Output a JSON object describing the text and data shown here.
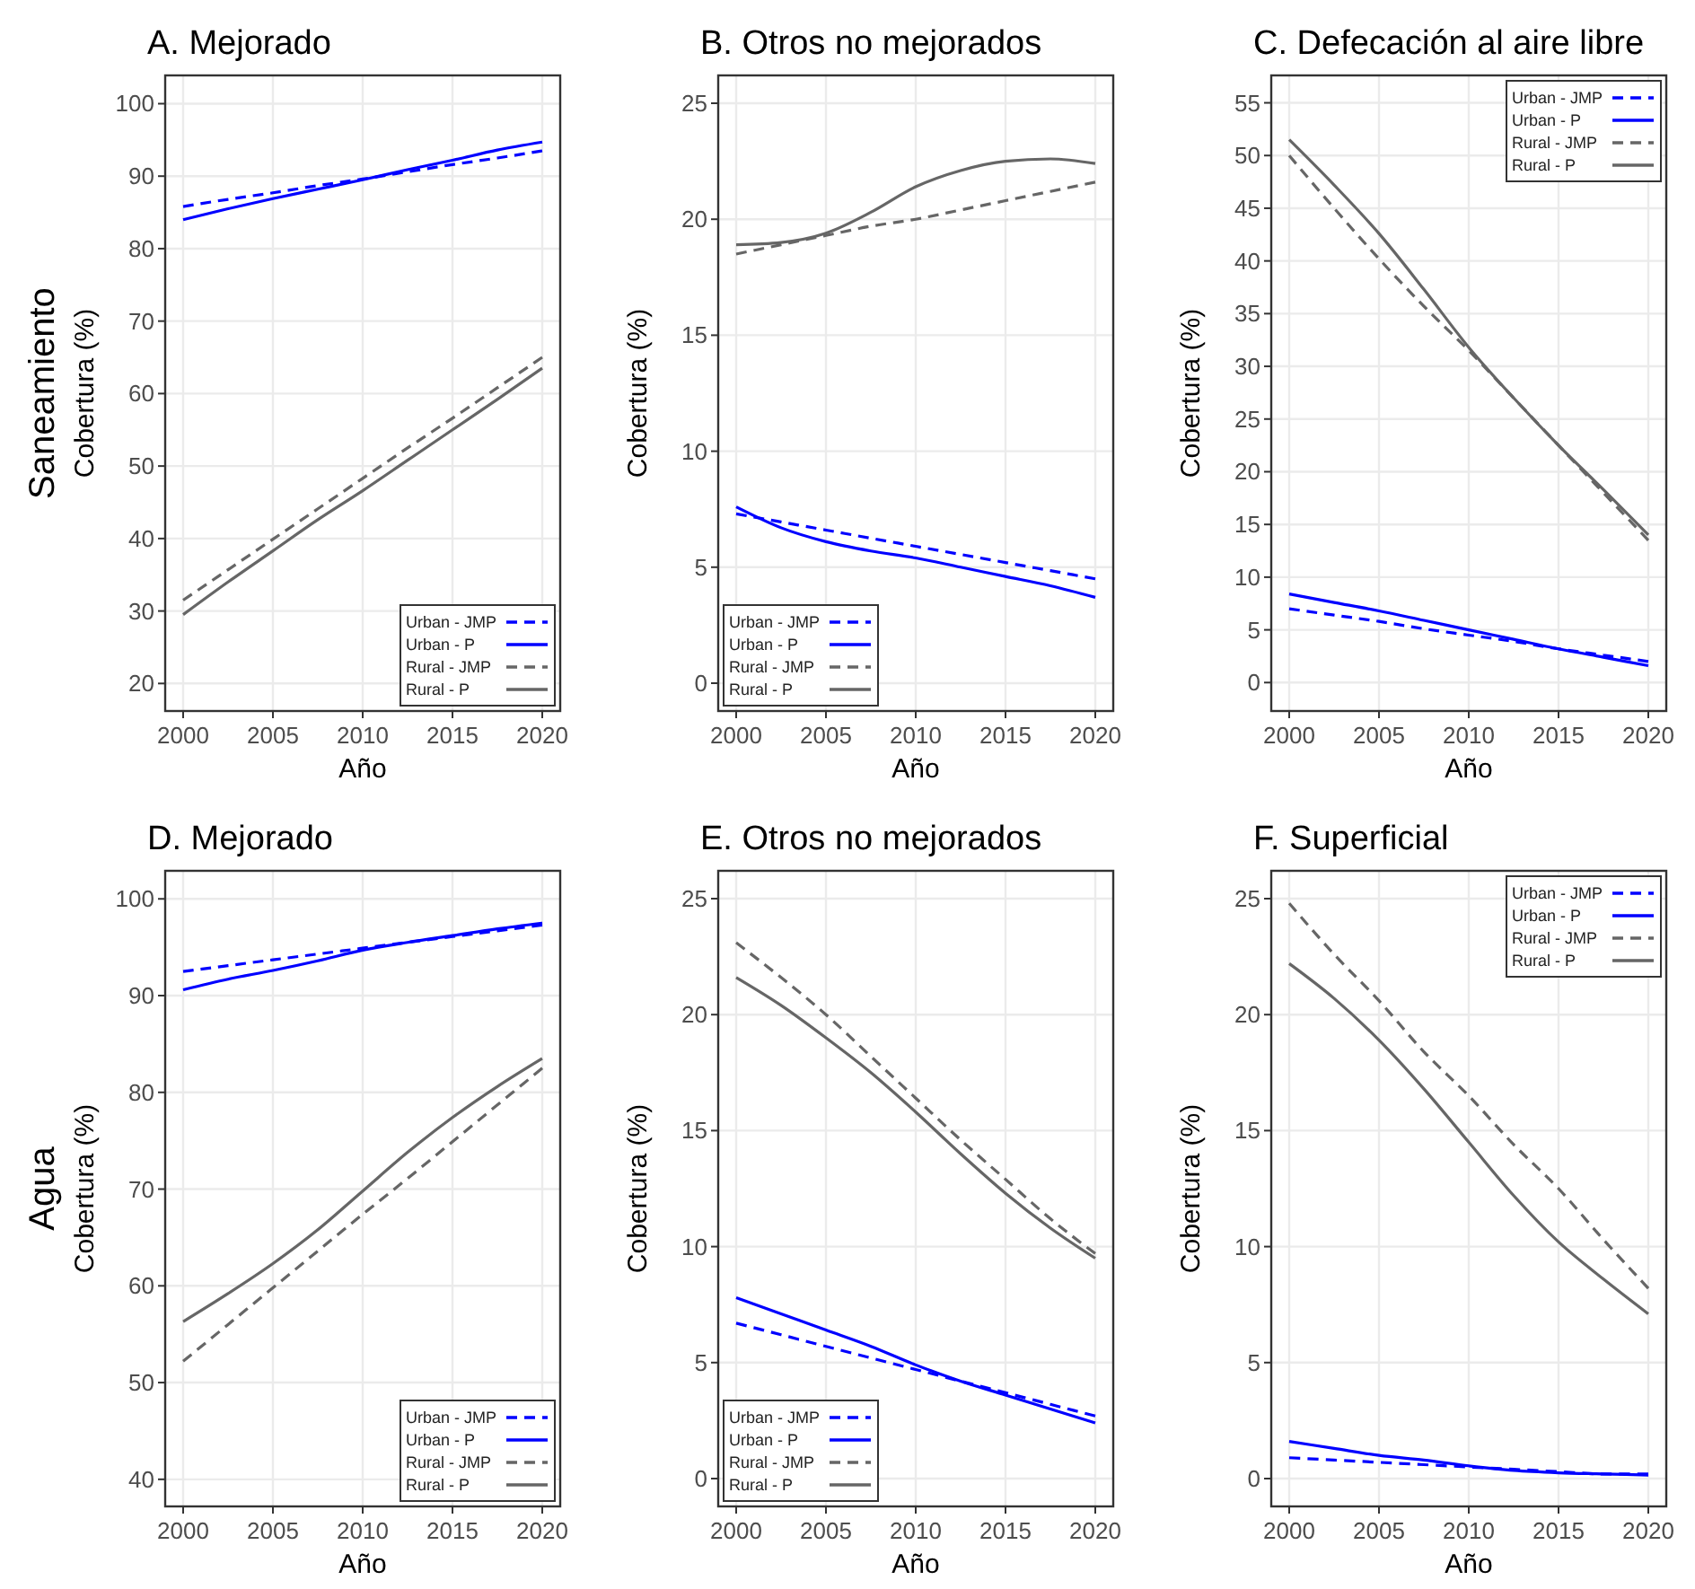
{
  "chart_data": [
    {
      "type": "line",
      "title": "A. Mejorado",
      "xlabel": "Año",
      "ylabel": "Cobertura (%)",
      "annotations": [
        "Saneamiento"
      ],
      "x": [
        2000,
        2002.5,
        2005,
        2007.5,
        2010,
        2012.5,
        2015,
        2017.5,
        2020
      ],
      "xlim": [
        1999,
        2021
      ],
      "xticks": [
        2000,
        2005,
        2010,
        2015,
        2020
      ],
      "ylim": [
        16.2,
        103.9
      ],
      "yticks": [
        20,
        30,
        40,
        50,
        60,
        70,
        80,
        90,
        100
      ],
      "grid": true,
      "legend": "bottom right",
      "series": [
        {
          "name": "Urban - JMP",
          "color": "#0000ff",
          "line_style": "dashed",
          "values": [
            85.8,
            86.8,
            87.7,
            88.7,
            89.6,
            90.6,
            91.6,
            92.5,
            93.5
          ]
        },
        {
          "name": "Urban - P",
          "color": "#0000ff",
          "line_style": "solid",
          "values": [
            84.0,
            85.5,
            86.9,
            88.2,
            89.5,
            90.9,
            92.2,
            93.6,
            94.7
          ]
        },
        {
          "name": "Rural - JMP",
          "color": "#666666",
          "line_style": "dashed",
          "values": [
            31.5,
            35.7,
            39.9,
            44.1,
            48.3,
            52.5,
            56.6,
            60.8,
            65.0
          ]
        },
        {
          "name": "Rural - P",
          "color": "#666666",
          "line_style": "solid",
          "values": [
            29.5,
            34.0,
            38.3,
            42.6,
            46.6,
            50.8,
            55.0,
            59.2,
            63.5
          ]
        }
      ]
    },
    {
      "type": "line",
      "title": "B. Otros no mejorados",
      "xlabel": "Año",
      "ylabel": "Cobertura (%)",
      "x": [
        2000,
        2002.5,
        2005,
        2007.5,
        2010,
        2012.5,
        2015,
        2017.5,
        2020
      ],
      "xlim": [
        1999,
        2021
      ],
      "xticks": [
        2000,
        2005,
        2010,
        2015,
        2020
      ],
      "ylim": [
        -1.2,
        26.2
      ],
      "yticks": [
        0,
        5,
        10,
        15,
        20,
        25
      ],
      "grid": true,
      "legend": "bottom left",
      "series": [
        {
          "name": "Urban - JMP",
          "color": "#0000ff",
          "line_style": "dashed",
          "values": [
            7.3,
            6.95,
            6.6,
            6.25,
            5.9,
            5.55,
            5.2,
            4.85,
            4.5
          ]
        },
        {
          "name": "Urban - P",
          "color": "#0000ff",
          "line_style": "solid",
          "values": [
            7.6,
            6.7,
            6.1,
            5.7,
            5.4,
            5.0,
            4.6,
            4.2,
            3.7
          ]
        },
        {
          "name": "Rural - JMP",
          "color": "#666666",
          "line_style": "dashed",
          "values": [
            18.5,
            18.9,
            19.3,
            19.7,
            20.0,
            20.4,
            20.8,
            21.2,
            21.6
          ]
        },
        {
          "name": "Rural - P",
          "color": "#666666",
          "line_style": "solid",
          "values": [
            18.9,
            19.0,
            19.4,
            20.3,
            21.4,
            22.1,
            22.5,
            22.6,
            22.4
          ]
        }
      ]
    },
    {
      "type": "line",
      "title": "C. Defecación al aire libre",
      "xlabel": "Año",
      "ylabel": "Cobertura (%)",
      "x": [
        2000,
        2002.5,
        2005,
        2007.5,
        2010,
        2012.5,
        2015,
        2017.5,
        2020
      ],
      "xlim": [
        1999,
        2021
      ],
      "xticks": [
        2000,
        2005,
        2010,
        2015,
        2020
      ],
      "ylim": [
        -2.7,
        57.6
      ],
      "yticks": [
        0,
        5,
        10,
        15,
        20,
        25,
        30,
        35,
        40,
        45,
        50,
        55
      ],
      "grid": true,
      "legend": "top right",
      "series": [
        {
          "name": "Urban - JMP",
          "color": "#0000ff",
          "line_style": "dashed",
          "values": [
            7.0,
            6.4,
            5.8,
            5.1,
            4.5,
            3.9,
            3.2,
            2.6,
            2.0
          ]
        },
        {
          "name": "Urban - P",
          "color": "#0000ff",
          "line_style": "solid",
          "values": [
            8.4,
            7.6,
            6.8,
            5.9,
            5.0,
            4.1,
            3.2,
            2.4,
            1.6
          ]
        },
        {
          "name": "Rural - JMP",
          "color": "#666666",
          "line_style": "dashed",
          "values": [
            50.0,
            45.0,
            40.2,
            35.7,
            31.5,
            27.0,
            22.5,
            18.0,
            13.5
          ]
        },
        {
          "name": "Rural - P",
          "color": "#666666",
          "line_style": "solid",
          "values": [
            51.5,
            47.2,
            42.6,
            37.3,
            31.8,
            27.0,
            22.5,
            18.3,
            14.0
          ]
        }
      ]
    },
    {
      "type": "line",
      "title": "D. Mejorado",
      "xlabel": "Año",
      "ylabel": "Cobertura (%)",
      "annotations": [
        "Agua"
      ],
      "x": [
        2000,
        2002.5,
        2005,
        2007.5,
        2010,
        2012.5,
        2015,
        2017.5,
        2020
      ],
      "xlim": [
        1999,
        2021
      ],
      "xticks": [
        2000,
        2005,
        2010,
        2015,
        2020
      ],
      "ylim": [
        37.2,
        102.9
      ],
      "yticks": [
        40,
        50,
        60,
        70,
        80,
        90,
        100
      ],
      "grid": true,
      "legend": "bottom right",
      "series": [
        {
          "name": "Urban - JMP",
          "color": "#0000ff",
          "line_style": "dashed",
          "values": [
            92.5,
            93.1,
            93.7,
            94.3,
            94.9,
            95.5,
            96.1,
            96.7,
            97.3
          ]
        },
        {
          "name": "Urban - P",
          "color": "#0000ff",
          "line_style": "solid",
          "values": [
            90.6,
            91.7,
            92.6,
            93.6,
            94.7,
            95.5,
            96.2,
            96.9,
            97.5
          ]
        },
        {
          "name": "Rural - JMP",
          "color": "#666666",
          "line_style": "dashed",
          "values": [
            52.2,
            56.0,
            59.8,
            63.6,
            67.4,
            71.1,
            74.9,
            78.7,
            82.5
          ]
        },
        {
          "name": "Rural - P",
          "color": "#666666",
          "line_style": "solid",
          "values": [
            56.3,
            59.2,
            62.3,
            65.8,
            69.8,
            73.8,
            77.4,
            80.6,
            83.5
          ]
        }
      ]
    },
    {
      "type": "line",
      "title": "E. Otros no mejorados",
      "xlabel": "Año",
      "ylabel": "Cobertura (%)",
      "x": [
        2000,
        2002.5,
        2005,
        2007.5,
        2010,
        2012.5,
        2015,
        2017.5,
        2020
      ],
      "xlim": [
        1999,
        2021
      ],
      "xticks": [
        2000,
        2005,
        2010,
        2015,
        2020
      ],
      "ylim": [
        -1.2,
        26.2
      ],
      "yticks": [
        0,
        5,
        10,
        15,
        20,
        25
      ],
      "grid": true,
      "legend": "bottom left",
      "series": [
        {
          "name": "Urban - JMP",
          "color": "#0000ff",
          "line_style": "dashed",
          "values": [
            6.7,
            6.2,
            5.7,
            5.2,
            4.7,
            4.2,
            3.7,
            3.2,
            2.7
          ]
        },
        {
          "name": "Urban - P",
          "color": "#0000ff",
          "line_style": "solid",
          "values": [
            7.8,
            7.1,
            6.4,
            5.7,
            4.9,
            4.2,
            3.6,
            3.0,
            2.4
          ]
        },
        {
          "name": "Rural - JMP",
          "color": "#666666",
          "line_style": "dashed",
          "values": [
            23.1,
            21.6,
            20.0,
            18.2,
            16.4,
            14.6,
            12.9,
            11.2,
            9.7
          ]
        },
        {
          "name": "Rural - P",
          "color": "#666666",
          "line_style": "solid",
          "values": [
            21.6,
            20.4,
            19.0,
            17.5,
            15.8,
            14.0,
            12.3,
            10.8,
            9.5
          ]
        }
      ]
    },
    {
      "type": "line",
      "title": "F. Superficial",
      "xlabel": "Año",
      "ylabel": "Cobertura (%)",
      "x": [
        2000,
        2002.5,
        2005,
        2007.5,
        2010,
        2012.5,
        2015,
        2017.5,
        2020
      ],
      "xlim": [
        1999,
        2021
      ],
      "xticks": [
        2000,
        2005,
        2010,
        2015,
        2020
      ],
      "ylim": [
        -1.2,
        26.2
      ],
      "yticks": [
        0,
        5,
        10,
        15,
        20,
        25
      ],
      "grid": true,
      "legend": "top right",
      "series": [
        {
          "name": "Urban - JMP",
          "color": "#0000ff",
          "line_style": "dashed",
          "values": [
            0.9,
            0.8,
            0.7,
            0.6,
            0.5,
            0.4,
            0.3,
            0.2,
            0.2
          ]
        },
        {
          "name": "Urban - P",
          "color": "#0000ff",
          "line_style": "solid",
          "values": [
            1.6,
            1.3,
            1.0,
            0.8,
            0.55,
            0.35,
            0.25,
            0.2,
            0.15
          ]
        },
        {
          "name": "Rural - JMP",
          "color": "#666666",
          "line_style": "dashed",
          "values": [
            24.8,
            22.6,
            20.6,
            18.4,
            16.5,
            14.4,
            12.5,
            10.3,
            8.2
          ]
        },
        {
          "name": "Rural - P",
          "color": "#666666",
          "line_style": "solid",
          "values": [
            22.2,
            20.7,
            18.9,
            16.8,
            14.5,
            12.2,
            10.2,
            8.6,
            7.1
          ]
        }
      ]
    }
  ]
}
